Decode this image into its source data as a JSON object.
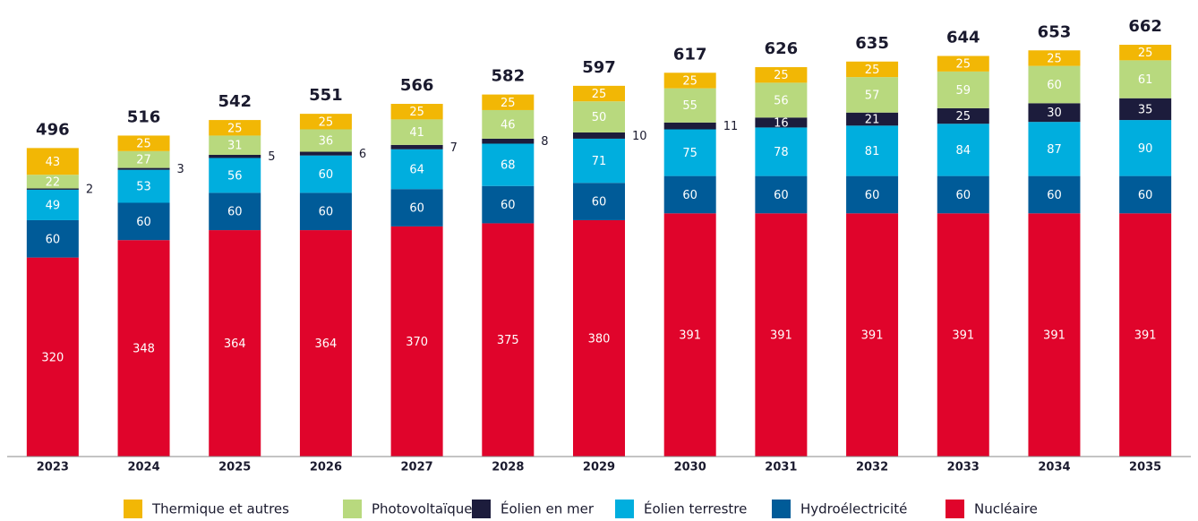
{
  "chart_data": {
    "type": "stacked_bar",
    "categories": [
      "2023",
      "2024",
      "2025",
      "2026",
      "2027",
      "2028",
      "2029",
      "2030",
      "2031",
      "2032",
      "2033",
      "2034",
      "2035"
    ],
    "totals": [
      496,
      516,
      542,
      551,
      566,
      582,
      597,
      617,
      626,
      635,
      644,
      653,
      662
    ],
    "series": [
      {
        "name": "Thermique et autres",
        "color": "#f2b705",
        "values": [
          43,
          25,
          25,
          25,
          25,
          25,
          25,
          25,
          25,
          25,
          25,
          25,
          25
        ]
      },
      {
        "name": "Photovoltaïque",
        "color": "#b8d97e",
        "values": [
          22,
          27,
          31,
          36,
          41,
          46,
          50,
          55,
          56,
          57,
          59,
          60,
          61
        ]
      },
      {
        "name": "Éolien en mer",
        "color": "#1c1c3c",
        "values": [
          2,
          3,
          5,
          6,
          7,
          8,
          10,
          11,
          16,
          21,
          25,
          30,
          35
        ]
      },
      {
        "name": "Éolien terrestre",
        "color": "#00aede",
        "values": [
          49,
          53,
          56,
          60,
          64,
          68,
          71,
          75,
          78,
          81,
          84,
          87,
          90
        ]
      },
      {
        "name": "Hydroélectricité",
        "color": "#005b98",
        "values": [
          60,
          60,
          60,
          60,
          60,
          60,
          60,
          60,
          60,
          60,
          60,
          60,
          60
        ]
      },
      {
        "name": "Nucléaire",
        "color": "#e0042b",
        "values": [
          320,
          348,
          364,
          364,
          370,
          375,
          380,
          391,
          391,
          391,
          391,
          391,
          391
        ]
      }
    ]
  }
}
